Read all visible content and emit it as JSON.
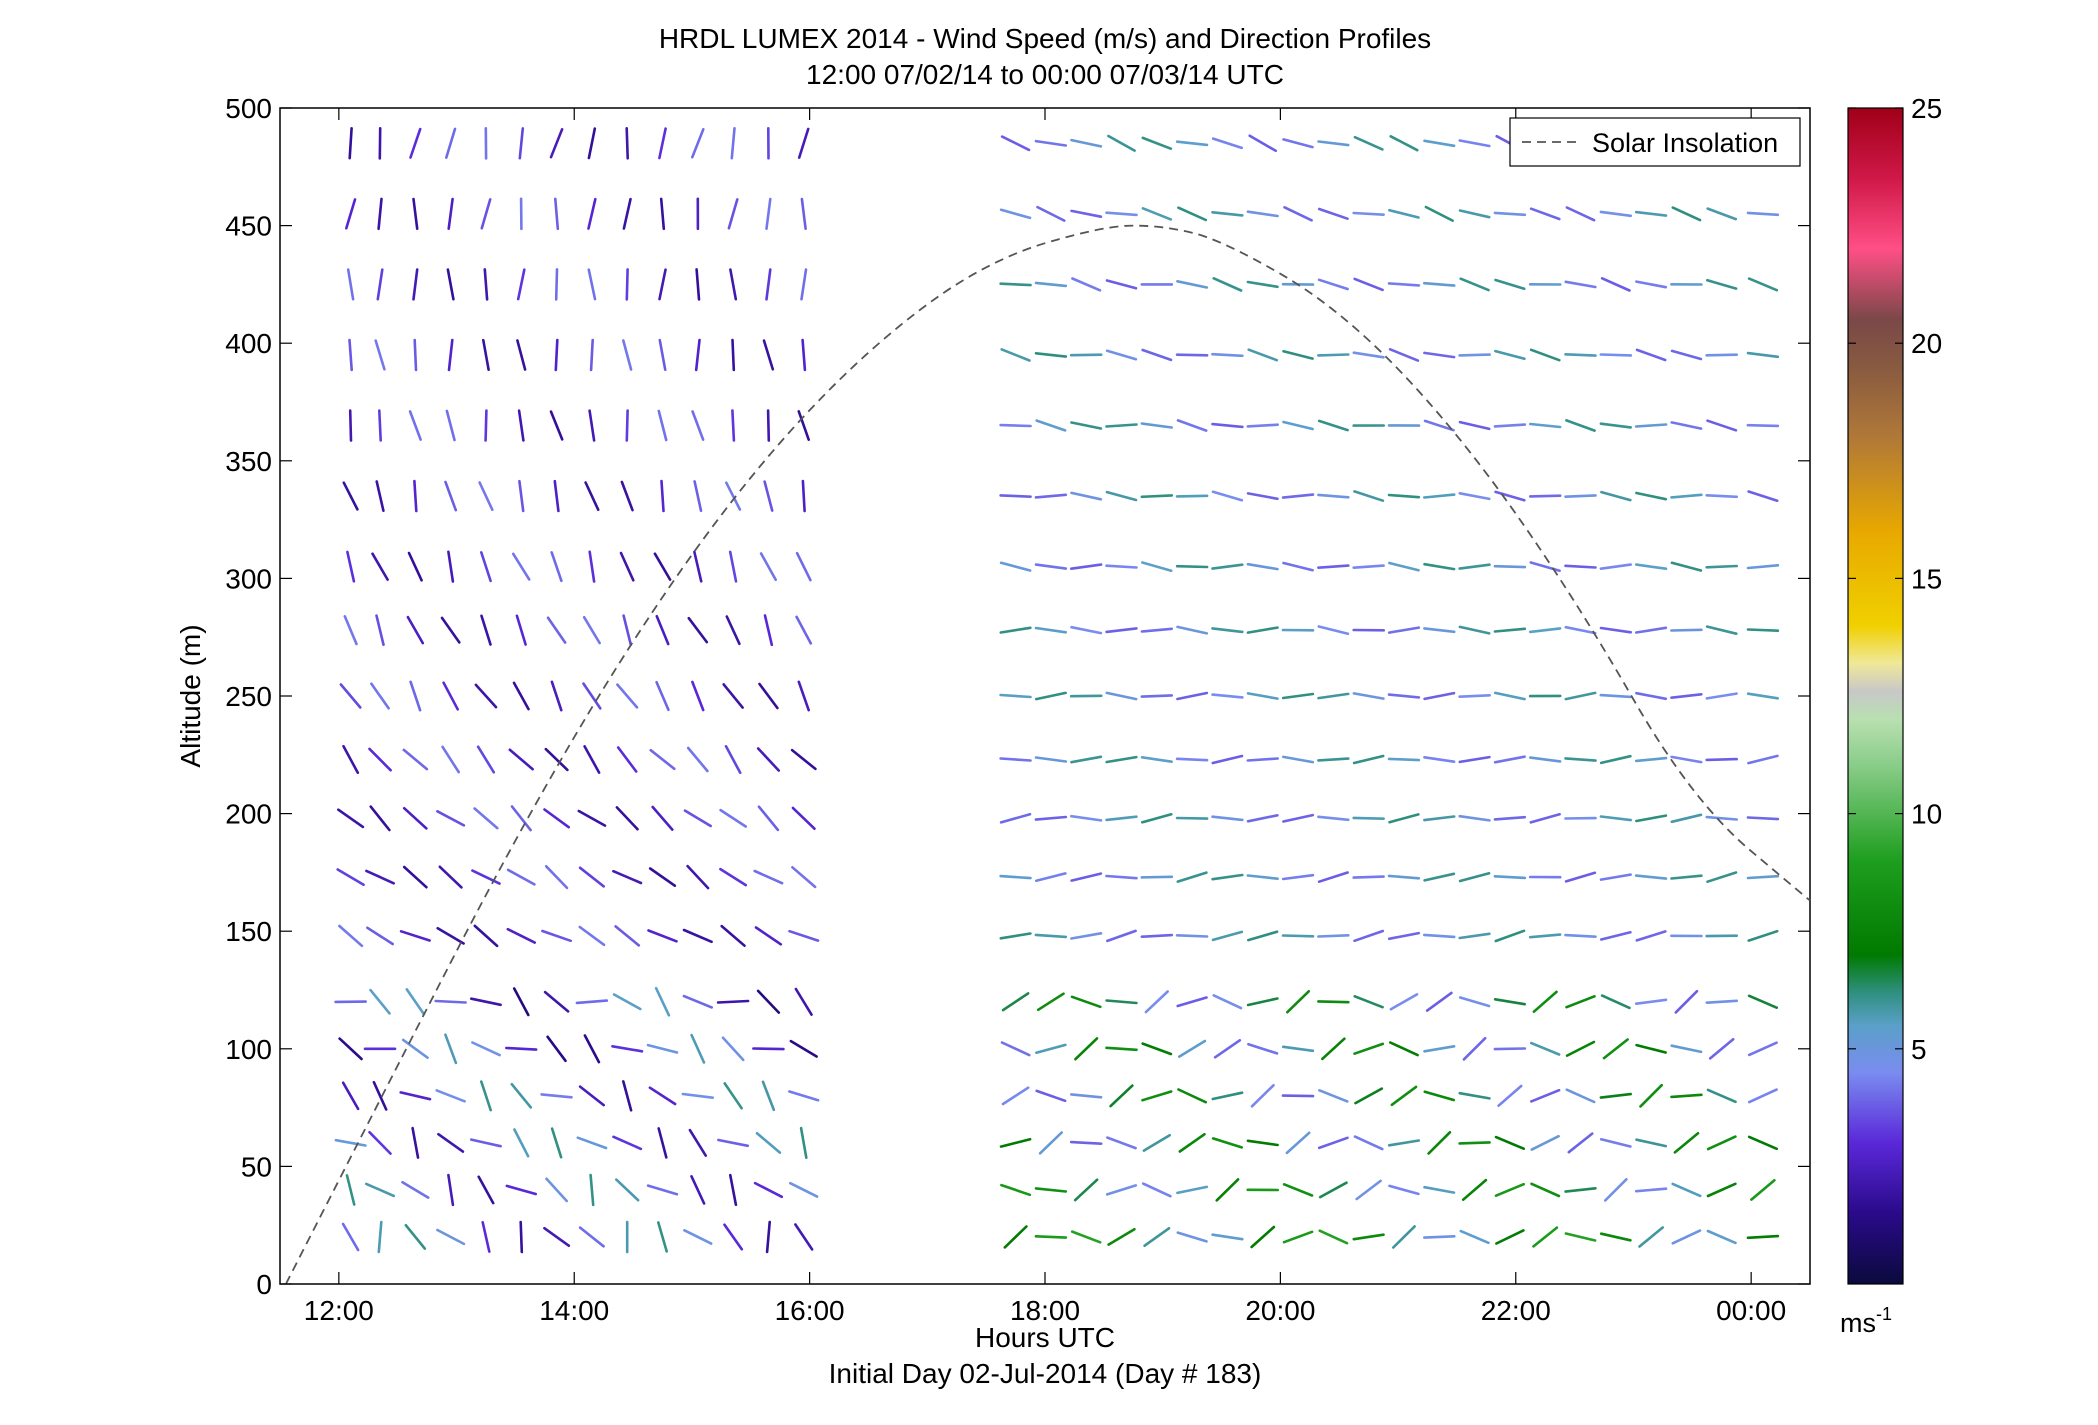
{
  "chart_data": {
    "type": "wind-barb",
    "title": "HRDL LUMEX 2014 - Wind Speed (m/s) and Direction Profiles",
    "subtitle": "12:00 07/02/14 to 00:00 07/03/14  UTC",
    "xlabel": "Hours UTC",
    "xlabel2": "Initial Day 02-Jul-2014 (Day # 183)",
    "ylabel": "Altitude (m)",
    "x_unit": "hours since 12:00 UTC 02-Jul-2014",
    "xlim": [
      -0.5,
      12.5
    ],
    "ylim": [
      0,
      500
    ],
    "x_ticks": [
      {
        "value": 0,
        "label": "12:00"
      },
      {
        "value": 2,
        "label": "14:00"
      },
      {
        "value": 4,
        "label": "16:00"
      },
      {
        "value": 6,
        "label": "18:00"
      },
      {
        "value": 8,
        "label": "20:00"
      },
      {
        "value": 10,
        "label": "22:00"
      },
      {
        "value": 12,
        "label": "00:00"
      }
    ],
    "y_ticks": [
      0,
      50,
      100,
      150,
      200,
      250,
      300,
      350,
      400,
      450,
      500
    ],
    "legend": {
      "label": "Solar Insolation",
      "position": "top-right"
    },
    "colorbar": {
      "unit": "ms",
      "unit_exp": "-1",
      "min": 0,
      "max": 25,
      "ticks": [
        5,
        10,
        15,
        20,
        25
      ],
      "stops": [
        {
          "v": 0,
          "c": "#0a0a3c"
        },
        {
          "v": 1.5,
          "c": "#2a0a8a"
        },
        {
          "v": 3,
          "c": "#5a28d8"
        },
        {
          "v": 4.5,
          "c": "#7a8cf0"
        },
        {
          "v": 5.5,
          "c": "#5aa0c8"
        },
        {
          "v": 6.2,
          "c": "#2f8f7f"
        },
        {
          "v": 7,
          "c": "#007a00"
        },
        {
          "v": 9,
          "c": "#1e9e1e"
        },
        {
          "v": 11,
          "c": "#88cc88"
        },
        {
          "v": 12,
          "c": "#b8e0b0"
        },
        {
          "v": 12.6,
          "c": "#c8c8c8"
        },
        {
          "v": 13.2,
          "c": "#f0e898"
        },
        {
          "v": 14,
          "c": "#f0d000"
        },
        {
          "v": 16,
          "c": "#e8a800"
        },
        {
          "v": 18,
          "c": "#b07838"
        },
        {
          "v": 19.5,
          "c": "#885a40"
        },
        {
          "v": 20.5,
          "c": "#7a4848"
        },
        {
          "v": 22,
          "c": "#ff4f86"
        },
        {
          "v": 23.5,
          "c": "#d01848"
        },
        {
          "v": 25,
          "c": "#a00018"
        }
      ]
    },
    "solar_insolation": {
      "style": "dashed",
      "color": "#555555",
      "x": [
        -0.45,
        0.5,
        1.5,
        2.5,
        3.5,
        4.5,
        5.5,
        6.5,
        7.0,
        7.5,
        8.5,
        9.5,
        10.5,
        11.5,
        12.5
      ],
      "y": [
        0,
        93,
        190,
        275,
        345,
        398,
        435,
        450,
        450,
        444,
        415,
        363,
        292,
        205,
        163
      ]
    },
    "profile_times": [
      0.1,
      0.35,
      0.65,
      0.95,
      1.25,
      1.55,
      1.85,
      2.15,
      2.45,
      2.75,
      3.05,
      3.35,
      3.65,
      3.95,
      5.75,
      6.05,
      6.35,
      6.65,
      6.95,
      7.25,
      7.55,
      7.85,
      8.15,
      8.45,
      8.75,
      9.05,
      9.35,
      9.65,
      9.95,
      10.25,
      10.55,
      10.85,
      11.15,
      11.45,
      11.75,
      12.1
    ],
    "altitudes": [
      20,
      40,
      60,
      80,
      100,
      120,
      148,
      173,
      198,
      223,
      250,
      278,
      305,
      335,
      365,
      395,
      425,
      455,
      485
    ],
    "afternoon_direction_deg": [
      150,
      140,
      135,
      130,
      125,
      120,
      120,
      125,
      130,
      140,
      150,
      155,
      160,
      165,
      170,
      175,
      180,
      185,
      190
    ],
    "evening_direction_deg": [
      80,
      80,
      80,
      80,
      80,
      80,
      82,
      84,
      86,
      88,
      90,
      92,
      94,
      96,
      98,
      100,
      102,
      105,
      108
    ],
    "afternoon_speed_ms": [
      4,
      4,
      4,
      4,
      3.5,
      3.5,
      3,
      3,
      3,
      3,
      3,
      3,
      3,
      3,
      3,
      3,
      3,
      3,
      3
    ],
    "evening_speed_ms": [
      7,
      6.5,
      6,
      6,
      6,
      6,
      5,
      5,
      5,
      5,
      5,
      5,
      5,
      5,
      5,
      5,
      5,
      5,
      5
    ]
  }
}
